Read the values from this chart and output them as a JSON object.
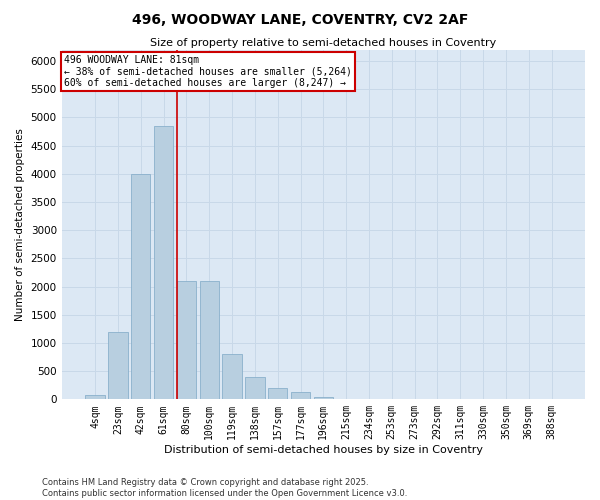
{
  "title_line1": "496, WOODWAY LANE, COVENTRY, CV2 2AF",
  "title_line2": "Size of property relative to semi-detached houses in Coventry",
  "xlabel": "Distribution of semi-detached houses by size in Coventry",
  "ylabel": "Number of semi-detached properties",
  "categories": [
    "4sqm",
    "23sqm",
    "42sqm",
    "61sqm",
    "80sqm",
    "100sqm",
    "119sqm",
    "138sqm",
    "157sqm",
    "177sqm",
    "196sqm",
    "215sqm",
    "234sqm",
    "253sqm",
    "273sqm",
    "292sqm",
    "311sqm",
    "330sqm",
    "350sqm",
    "369sqm",
    "388sqm"
  ],
  "values": [
    75,
    1200,
    4000,
    4850,
    2100,
    2100,
    800,
    400,
    200,
    130,
    50,
    10,
    5,
    2,
    0,
    0,
    0,
    0,
    0,
    0,
    0
  ],
  "bar_color": "#b8cfe0",
  "bar_edge_color": "#8ab0cc",
  "property_line_index": 4,
  "annotation_text": "496 WOODWAY LANE: 81sqm\n← 38% of semi-detached houses are smaller (5,264)\n60% of semi-detached houses are larger (8,247) →",
  "annotation_box_color": "#ffffff",
  "annotation_box_edge_color": "#cc0000",
  "ylim": [
    0,
    6200
  ],
  "yticks": [
    0,
    500,
    1000,
    1500,
    2000,
    2500,
    3000,
    3500,
    4000,
    4500,
    5000,
    5500,
    6000
  ],
  "grid_color": "#c8d8e8",
  "background_color": "#dce8f4",
  "footer_line1": "Contains HM Land Registry data © Crown copyright and database right 2025.",
  "footer_line2": "Contains public sector information licensed under the Open Government Licence v3.0."
}
